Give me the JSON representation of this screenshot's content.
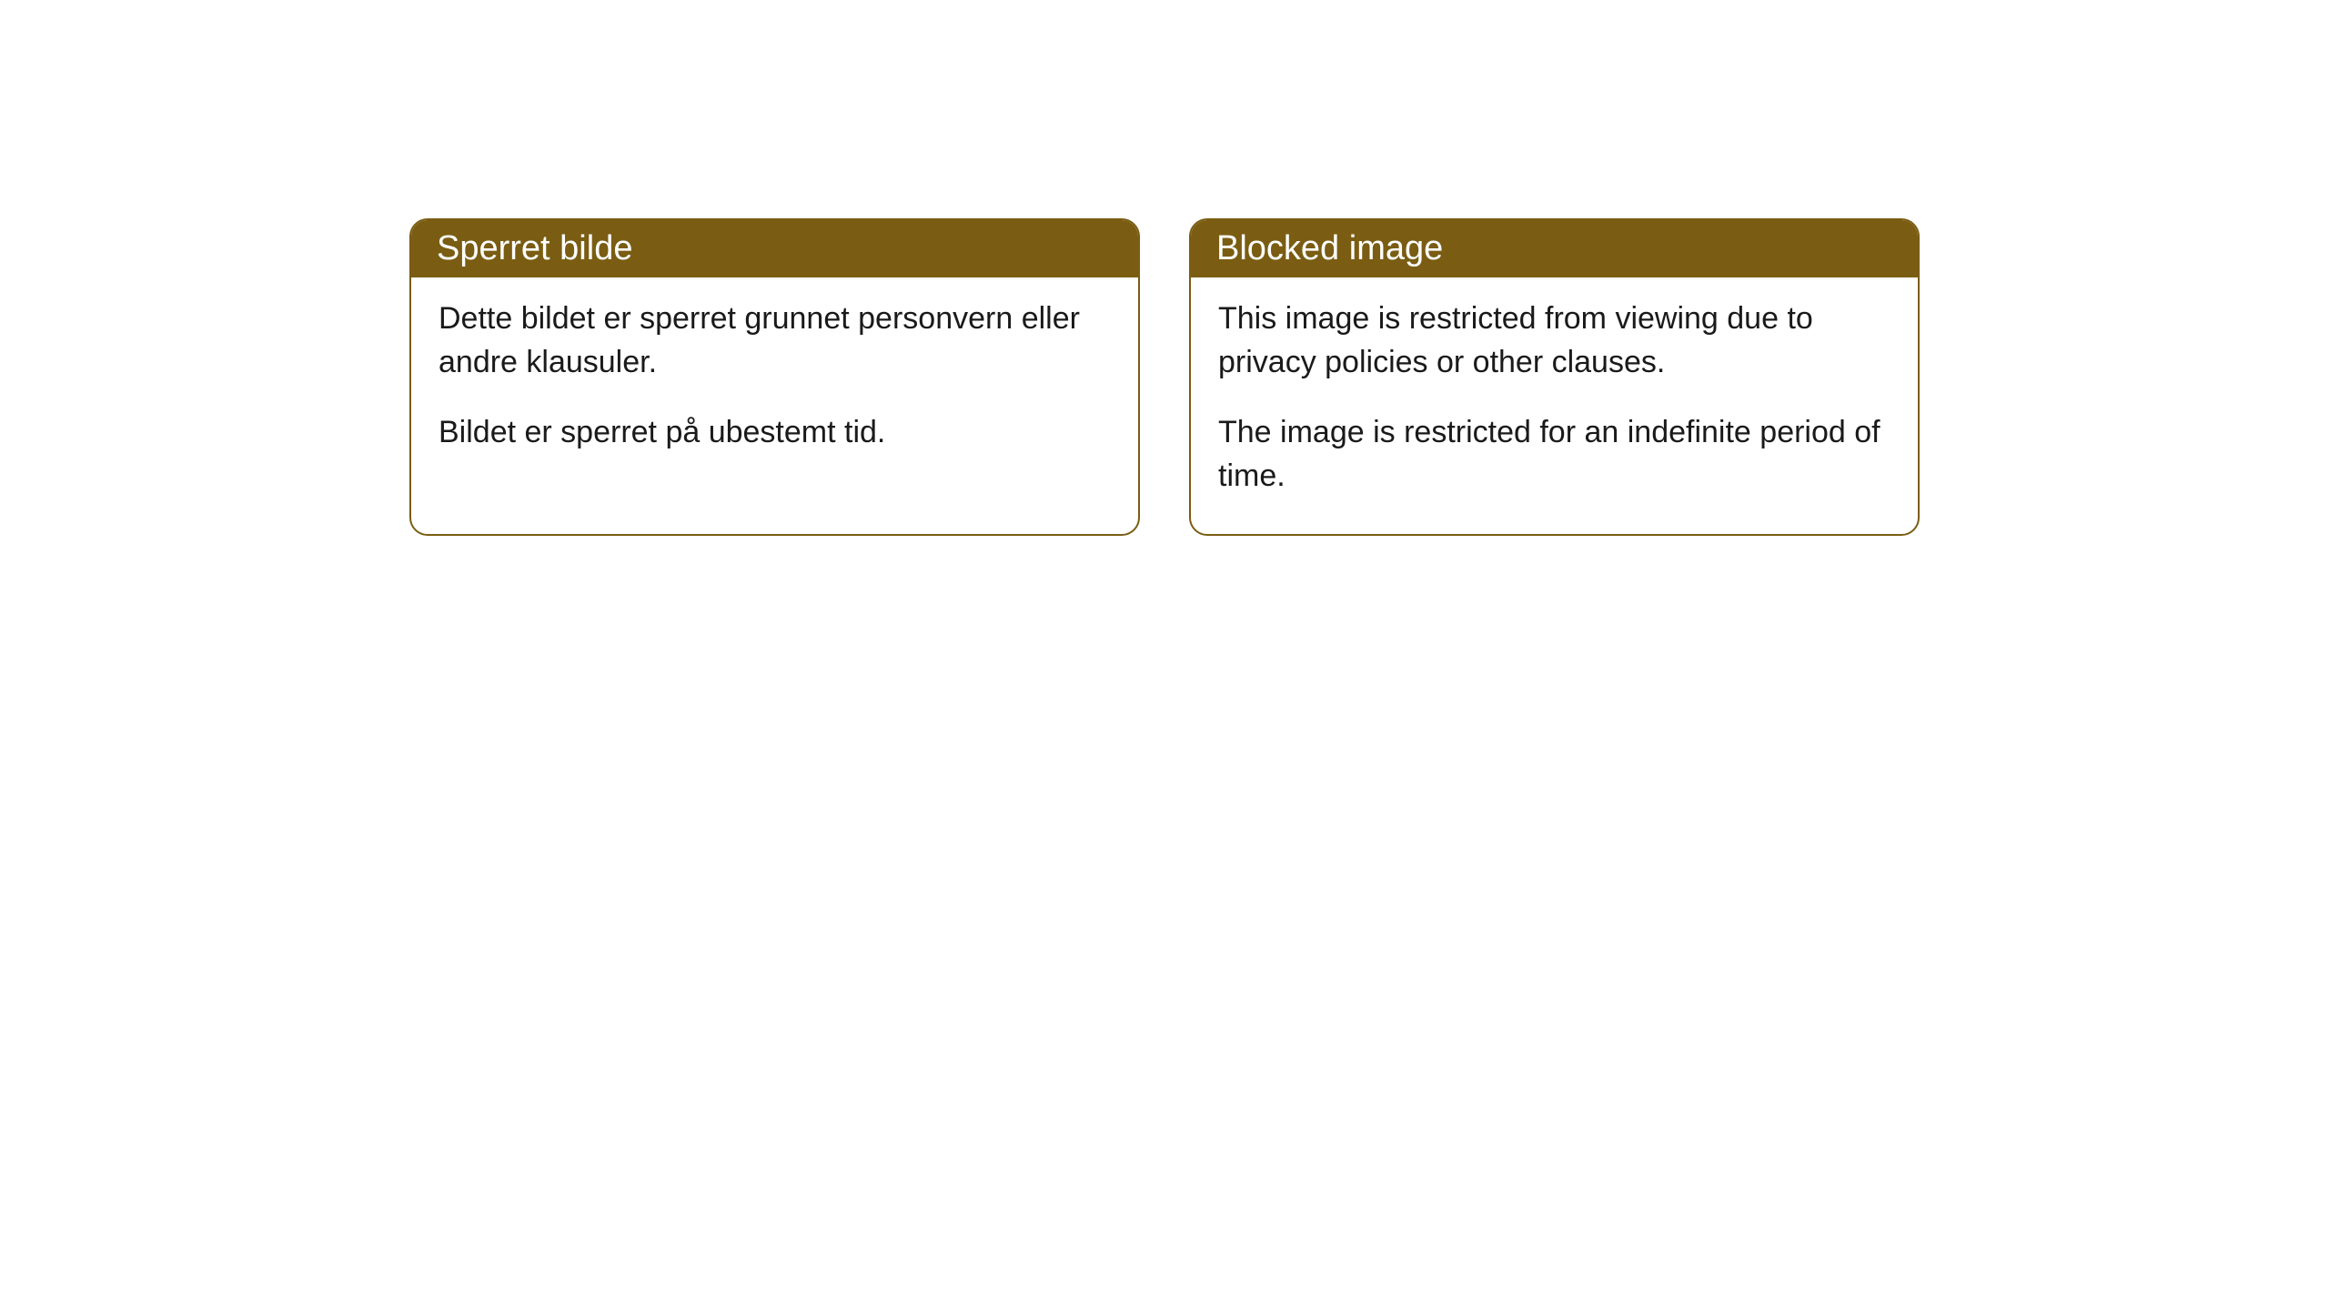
{
  "styling": {
    "header_bg_color": "#7a5d13",
    "header_text_color": "#ffffff",
    "border_color": "#7a5d13",
    "body_bg_color": "#ffffff",
    "body_text_color": "#1a1a1a",
    "border_radius": 20,
    "header_fontsize": 38,
    "body_fontsize": 34
  },
  "cards": [
    {
      "title": "Sperret bilde",
      "paragraphs": [
        "Dette bildet er sperret grunnet personvern eller andre klausuler.",
        "Bildet er sperret på ubestemt tid."
      ]
    },
    {
      "title": "Blocked image",
      "paragraphs": [
        "This image is restricted from viewing due to privacy policies or other clauses.",
        "The image is restricted for an indefinite period of time."
      ]
    }
  ]
}
